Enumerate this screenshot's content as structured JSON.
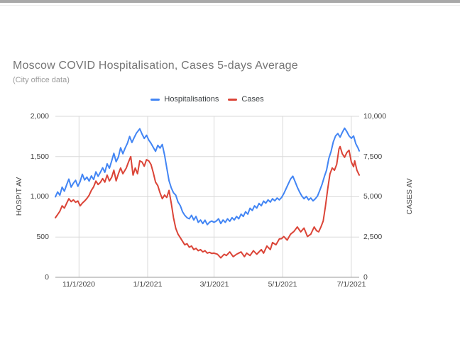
{
  "page": {
    "top_bar_color": "#a9a9a9"
  },
  "chart": {
    "title": "Moscow COVID Hospitalisation, Cases 5-days Average",
    "subtitle": "(City office data)",
    "legend": [
      {
        "label": "Hospitalisations",
        "color": "#4285f4"
      },
      {
        "label": "Cases",
        "color": "#db4437"
      }
    ],
    "left_axis": {
      "title": "HOSPIT AV",
      "ticks": [
        "2,000",
        "1,500",
        "1,000",
        "500",
        "0"
      ]
    },
    "right_axis": {
      "title": "CASES AV",
      "ticks": [
        "10,000",
        "7,500",
        "5,000",
        "2,500",
        "0"
      ]
    },
    "x_axis": {
      "ticks": [
        "11/1/2020",
        "1/1/2021",
        "3/1/2021",
        "5/1/2021",
        "7/1/2021"
      ]
    }
  },
  "chart_data": {
    "type": "line",
    "title": "Moscow COVID Hospitalisation, Cases 5-days Average",
    "subtitle": "(City office data)",
    "legend_position": "top",
    "grid": true,
    "x_axis": {
      "unit": "days",
      "range": [
        0,
        270
      ],
      "tick_day_offsets": [
        21,
        82,
        141,
        202,
        263
      ],
      "tick_labels": [
        "11/1/2020",
        "1/1/2021",
        "3/1/2021",
        "5/1/2021",
        "7/1/2021"
      ]
    },
    "axes": {
      "left": {
        "title": "HOSPIT AV",
        "range": [
          0,
          2000
        ],
        "ticks": [
          0,
          500,
          1000,
          1500,
          2000
        ]
      },
      "right": {
        "title": "CASES AV",
        "range": [
          0,
          10000
        ],
        "ticks": [
          0,
          2500,
          5000,
          7500,
          10000
        ]
      }
    },
    "series": [
      {
        "name": "Hospitalisations",
        "color": "#4285f4",
        "axis": "left",
        "points": [
          [
            0,
            1000
          ],
          [
            2,
            1060
          ],
          [
            4,
            1020
          ],
          [
            6,
            1120
          ],
          [
            8,
            1070
          ],
          [
            10,
            1150
          ],
          [
            12,
            1220
          ],
          [
            14,
            1120
          ],
          [
            16,
            1170
          ],
          [
            18,
            1205
          ],
          [
            20,
            1130
          ],
          [
            22,
            1190
          ],
          [
            24,
            1280
          ],
          [
            26,
            1210
          ],
          [
            28,
            1245
          ],
          [
            30,
            1195
          ],
          [
            32,
            1260
          ],
          [
            34,
            1215
          ],
          [
            36,
            1310
          ],
          [
            38,
            1255
          ],
          [
            40,
            1305
          ],
          [
            42,
            1360
          ],
          [
            44,
            1305
          ],
          [
            46,
            1410
          ],
          [
            48,
            1355
          ],
          [
            50,
            1445
          ],
          [
            52,
            1540
          ],
          [
            54,
            1435
          ],
          [
            56,
            1495
          ],
          [
            58,
            1610
          ],
          [
            60,
            1535
          ],
          [
            62,
            1605
          ],
          [
            64,
            1665
          ],
          [
            66,
            1750
          ],
          [
            68,
            1675
          ],
          [
            70,
            1735
          ],
          [
            72,
            1790
          ],
          [
            75,
            1845
          ],
          [
            77,
            1780
          ],
          [
            79,
            1725
          ],
          [
            81,
            1765
          ],
          [
            83,
            1705
          ],
          [
            85,
            1665
          ],
          [
            87,
            1615
          ],
          [
            89,
            1565
          ],
          [
            91,
            1640
          ],
          [
            93,
            1605
          ],
          [
            95,
            1650
          ],
          [
            97,
            1520
          ],
          [
            99,
            1360
          ],
          [
            101,
            1200
          ],
          [
            103,
            1110
          ],
          [
            105,
            1050
          ],
          [
            107,
            1020
          ],
          [
            109,
            935
          ],
          [
            111,
            890
          ],
          [
            113,
            815
          ],
          [
            115,
            770
          ],
          [
            117,
            740
          ],
          [
            119,
            727
          ],
          [
            121,
            770
          ],
          [
            123,
            712
          ],
          [
            125,
            756
          ],
          [
            127,
            683
          ],
          [
            129,
            712
          ],
          [
            131,
            668
          ],
          [
            133,
            710
          ],
          [
            135,
            655
          ],
          [
            137,
            685
          ],
          [
            139,
            700
          ],
          [
            141,
            683
          ],
          [
            143,
            700
          ],
          [
            145,
            727
          ],
          [
            147,
            668
          ],
          [
            149,
            712
          ],
          [
            151,
            683
          ],
          [
            153,
            727
          ],
          [
            155,
            697
          ],
          [
            157,
            741
          ],
          [
            159,
            712
          ],
          [
            161,
            756
          ],
          [
            163,
            727
          ],
          [
            165,
            785
          ],
          [
            167,
            756
          ],
          [
            169,
            815
          ],
          [
            171,
            785
          ],
          [
            173,
            858
          ],
          [
            175,
            830
          ],
          [
            177,
            888
          ],
          [
            179,
            860
          ],
          [
            181,
            918
          ],
          [
            183,
            888
          ],
          [
            185,
            947
          ],
          [
            187,
            920
          ],
          [
            189,
            962
          ],
          [
            191,
            935
          ],
          [
            193,
            976
          ],
          [
            195,
            950
          ],
          [
            197,
            985
          ],
          [
            199,
            962
          ],
          [
            201,
            991
          ],
          [
            203,
            1040
          ],
          [
            205,
            1100
          ],
          [
            207,
            1160
          ],
          [
            209,
            1220
          ],
          [
            211,
            1256
          ],
          [
            213,
            1190
          ],
          [
            215,
            1120
          ],
          [
            217,
            1060
          ],
          [
            219,
            1010
          ],
          [
            221,
            976
          ],
          [
            223,
            1005
          ],
          [
            225,
            962
          ],
          [
            227,
            985
          ],
          [
            229,
            950
          ],
          [
            231,
            975
          ],
          [
            233,
            1010
          ],
          [
            235,
            1080
          ],
          [
            237,
            1155
          ],
          [
            239,
            1250
          ],
          [
            241,
            1330
          ],
          [
            243,
            1476
          ],
          [
            245,
            1565
          ],
          [
            247,
            1682
          ],
          [
            249,
            1756
          ],
          [
            251,
            1786
          ],
          [
            253,
            1741
          ],
          [
            255,
            1800
          ],
          [
            257,
            1853
          ],
          [
            259,
            1810
          ],
          [
            261,
            1758
          ],
          [
            263,
            1727
          ],
          [
            265,
            1756
          ],
          [
            267,
            1660
          ],
          [
            269,
            1605
          ],
          [
            270,
            1570
          ]
        ]
      },
      {
        "name": "Cases",
        "color": "#db4437",
        "axis": "right",
        "points": [
          [
            0,
            3700
          ],
          [
            2,
            3900
          ],
          [
            4,
            4100
          ],
          [
            6,
            4440
          ],
          [
            8,
            4300
          ],
          [
            10,
            4600
          ],
          [
            12,
            4880
          ],
          [
            14,
            4700
          ],
          [
            16,
            4810
          ],
          [
            18,
            4660
          ],
          [
            20,
            4740
          ],
          [
            22,
            4440
          ],
          [
            24,
            4610
          ],
          [
            26,
            4740
          ],
          [
            28,
            4900
          ],
          [
            30,
            5100
          ],
          [
            32,
            5400
          ],
          [
            34,
            5620
          ],
          [
            36,
            5980
          ],
          [
            38,
            5760
          ],
          [
            40,
            5900
          ],
          [
            42,
            6130
          ],
          [
            44,
            5910
          ],
          [
            46,
            6350
          ],
          [
            48,
            5985
          ],
          [
            50,
            6205
          ],
          [
            52,
            6650
          ],
          [
            54,
            5990
          ],
          [
            56,
            6430
          ],
          [
            58,
            6790
          ],
          [
            60,
            6430
          ],
          [
            63,
            6790
          ],
          [
            65,
            7160
          ],
          [
            67,
            7500
          ],
          [
            69,
            6350
          ],
          [
            71,
            6790
          ],
          [
            73,
            6430
          ],
          [
            75,
            7235
          ],
          [
            77,
            7160
          ],
          [
            79,
            6900
          ],
          [
            81,
            7310
          ],
          [
            83,
            7230
          ],
          [
            85,
            7010
          ],
          [
            87,
            6500
          ],
          [
            89,
            5910
          ],
          [
            91,
            5690
          ],
          [
            93,
            5250
          ],
          [
            95,
            4880
          ],
          [
            97,
            5105
          ],
          [
            99,
            4960
          ],
          [
            101,
            5395
          ],
          [
            103,
            4590
          ],
          [
            105,
            3705
          ],
          [
            107,
            3040
          ],
          [
            109,
            2680
          ],
          [
            111,
            2460
          ],
          [
            113,
            2240
          ],
          [
            115,
            2016
          ],
          [
            117,
            2090
          ],
          [
            119,
            1870
          ],
          [
            121,
            1943
          ],
          [
            123,
            1722
          ],
          [
            125,
            1796
          ],
          [
            127,
            1650
          ],
          [
            129,
            1722
          ],
          [
            131,
            1575
          ],
          [
            133,
            1650
          ],
          [
            135,
            1500
          ],
          [
            137,
            1550
          ],
          [
            139,
            1480
          ],
          [
            141,
            1500
          ],
          [
            144,
            1430
          ],
          [
            147,
            1207
          ],
          [
            150,
            1430
          ],
          [
            152,
            1354
          ],
          [
            155,
            1575
          ],
          [
            158,
            1280
          ],
          [
            161,
            1430
          ],
          [
            165,
            1575
          ],
          [
            168,
            1280
          ],
          [
            170,
            1500
          ],
          [
            173,
            1354
          ],
          [
            176,
            1650
          ],
          [
            179,
            1430
          ],
          [
            183,
            1722
          ],
          [
            185,
            1500
          ],
          [
            188,
            1943
          ],
          [
            191,
            1722
          ],
          [
            193,
            2163
          ],
          [
            196,
            2016
          ],
          [
            199,
            2384
          ],
          [
            201,
            2400
          ],
          [
            203,
            2531
          ],
          [
            206,
            2310
          ],
          [
            209,
            2678
          ],
          [
            212,
            2850
          ],
          [
            215,
            3126
          ],
          [
            218,
            2825
          ],
          [
            221,
            3057
          ],
          [
            224,
            2531
          ],
          [
            227,
            2678
          ],
          [
            230,
            3126
          ],
          [
            232,
            2899
          ],
          [
            234,
            2825
          ],
          [
            236,
            3126
          ],
          [
            238,
            3500
          ],
          [
            240,
            4400
          ],
          [
            242,
            5470
          ],
          [
            244,
            6425
          ],
          [
            246,
            6793
          ],
          [
            248,
            6646
          ],
          [
            250,
            7013
          ],
          [
            252,
            7970
          ],
          [
            253,
            8117
          ],
          [
            255,
            7675
          ],
          [
            257,
            7455
          ],
          [
            259,
            7749
          ],
          [
            261,
            7896
          ],
          [
            263,
            7161
          ],
          [
            265,
            6867
          ],
          [
            266,
            7234
          ],
          [
            268,
            6646
          ],
          [
            270,
            6351
          ]
        ]
      }
    ]
  }
}
